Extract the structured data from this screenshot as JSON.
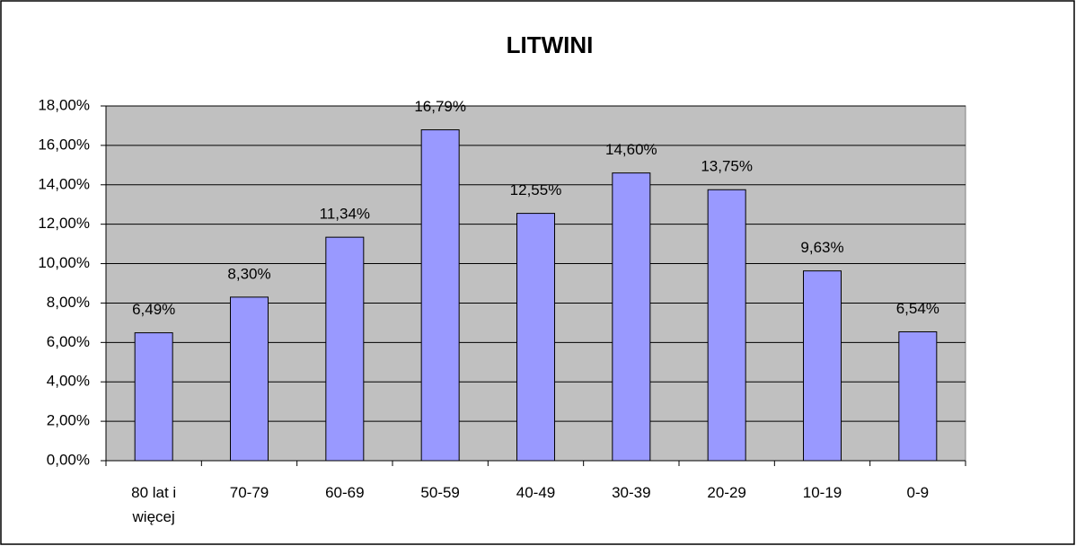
{
  "chart_data": {
    "type": "bar",
    "title": "LITWINI",
    "categories": [
      "80 lat i więcej",
      "70-79",
      "60-69",
      "50-59",
      "40-49",
      "30-39",
      "20-29",
      "10-19",
      "0-9"
    ],
    "values": [
      6.49,
      8.3,
      11.34,
      16.79,
      12.55,
      14.6,
      13.75,
      9.63,
      6.54
    ],
    "value_labels": [
      "6,49%",
      "8,30%",
      "11,34%",
      "16,79%",
      "12,55%",
      "14,60%",
      "13,75%",
      "9,63%",
      "6,54%"
    ],
    "color": "#9999ff",
    "ylim": [
      0,
      18
    ],
    "yticks": [
      {
        "value": 0,
        "label": "0,00%"
      },
      {
        "value": 2,
        "label": "2,00%"
      },
      {
        "value": 4,
        "label": "4,00%"
      },
      {
        "value": 6,
        "label": "6,00%"
      },
      {
        "value": 8,
        "label": "8,00%"
      },
      {
        "value": 10,
        "label": "10,00%"
      },
      {
        "value": 12,
        "label": "12,00%"
      },
      {
        "value": 14,
        "label": "14,00%"
      },
      {
        "value": 16,
        "label": "16,00%"
      },
      {
        "value": 18,
        "label": "18,00%"
      }
    ],
    "grid": true
  }
}
